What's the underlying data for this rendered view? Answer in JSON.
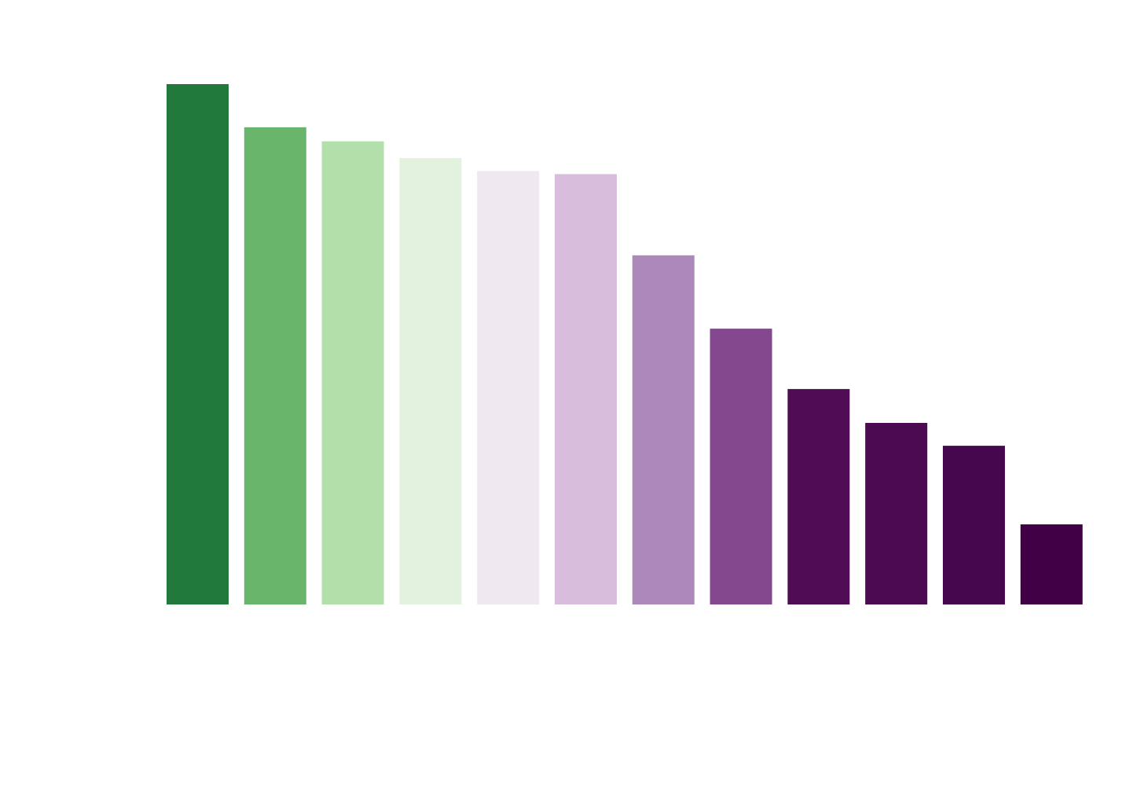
{
  "chart_data": {
    "type": "bar",
    "title": "",
    "xlabel": "",
    "ylabel": "",
    "ylim": [
      0,
      100
    ],
    "grid": false,
    "legend": "none",
    "categories": [
      "",
      "",
      "",
      "",
      "",
      "",
      "",
      "",
      "",
      "",
      "",
      ""
    ],
    "values": [
      100,
      91.7,
      89.0,
      85.8,
      83.3,
      82.7,
      67.1,
      53.0,
      41.4,
      34.9,
      30.5,
      15.4
    ],
    "colors": [
      "#217a3b",
      "#69b56c",
      "#b3e0aa",
      "#e2f2de",
      "#f0e8f0",
      "#d8bedc",
      "#ad88ba",
      "#84488f",
      "#500d56",
      "#4b0a52",
      "#46074e",
      "#410046"
    ]
  }
}
